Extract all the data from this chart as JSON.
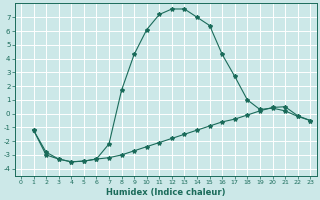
{
  "xlabel": "Humidex (Indice chaleur)",
  "bg_color": "#cce8e8",
  "line_color": "#1a6b5a",
  "grid_color": "#ffffff",
  "xlim": [
    -0.5,
    23.5
  ],
  "ylim": [
    -4.5,
    8.0
  ],
  "xticks": [
    0,
    1,
    2,
    3,
    4,
    5,
    6,
    7,
    8,
    9,
    10,
    11,
    12,
    13,
    14,
    15,
    16,
    17,
    18,
    19,
    20,
    21,
    22,
    23
  ],
  "yticks": [
    -4,
    -3,
    -2,
    -1,
    0,
    1,
    2,
    3,
    4,
    5,
    6,
    7
  ],
  "curve1_x": [
    1,
    2,
    3,
    4,
    5,
    6,
    7,
    8,
    9,
    10,
    11,
    12,
    13,
    14,
    15,
    16,
    17,
    18,
    19,
    20,
    21,
    22,
    23
  ],
  "curve1_y": [
    -1.2,
    -2.8,
    -3.3,
    -3.5,
    -3.45,
    -3.3,
    -2.2,
    1.7,
    4.3,
    6.1,
    7.2,
    7.6,
    7.6,
    7.0,
    6.4,
    4.3,
    2.7,
    1.0,
    0.3,
    0.4,
    0.2,
    -0.2,
    -0.5
  ],
  "curve2_x": [
    1,
    2,
    3,
    4,
    5,
    6,
    7,
    8,
    9,
    10,
    11,
    12,
    13,
    14,
    15,
    16,
    17,
    18,
    19,
    20,
    21,
    22,
    23
  ],
  "curve2_y": [
    -1.2,
    -3.0,
    -3.3,
    -3.5,
    -3.45,
    -3.3,
    -3.2,
    -3.0,
    -2.7,
    -2.4,
    -2.1,
    -1.8,
    -1.5,
    -1.2,
    -0.9,
    -0.6,
    -0.4,
    -0.1,
    0.2,
    0.45,
    0.5,
    -0.15,
    -0.5
  ]
}
